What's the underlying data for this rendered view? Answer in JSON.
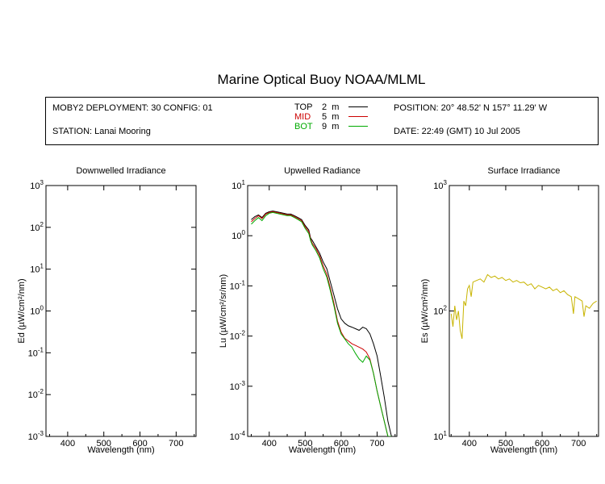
{
  "title": "Marine Optical Buoy NOAA/MLML",
  "info": {
    "deployment": "MOBY2 DEPLOYMENT: 30 CONFIG: 01",
    "station": "STATION: Lanai Mooring",
    "position": "POSITION: 20° 48.52' N   157° 11.29' W",
    "date": "DATE: 22:49 (GMT) 10 Jul 2005"
  },
  "legend": [
    {
      "label": "TOP",
      "depth": "2",
      "unit": "m",
      "color": "#000000"
    },
    {
      "label": "MID",
      "depth": "5",
      "unit": "m",
      "color": "#cc0000"
    },
    {
      "label": "BOT",
      "depth": "9",
      "unit": "m",
      "color": "#00aa00"
    }
  ],
  "chart_data": [
    {
      "type": "line",
      "title": "Downwelled Irradiance",
      "xlabel": "Wavelength (nm)",
      "ylabel": "Ed  (µW/cm²/nm)",
      "xlim": [
        340,
        755
      ],
      "ylim": [
        0.001,
        1000
      ],
      "yscale": "log",
      "xticks": [
        "400",
        "500",
        "600",
        "700"
      ],
      "yticks": [
        {
          "base": "10",
          "exp": "-3"
        },
        {
          "base": "10",
          "exp": "-2"
        },
        {
          "base": "10",
          "exp": "-1"
        },
        {
          "base": "10",
          "exp": "0"
        },
        {
          "base": "10",
          "exp": "1"
        },
        {
          "base": "10",
          "exp": "2"
        },
        {
          "base": "10",
          "exp": "3"
        }
      ],
      "series": []
    },
    {
      "type": "line",
      "title": "Upwelled Radiance",
      "xlabel": "Wavelength (nm)",
      "ylabel": "Lu  (µW/cm²/sr/nm)",
      "xlim": [
        340,
        755
      ],
      "ylim": [
        0.0001,
        10
      ],
      "yscale": "log",
      "xticks": [
        "400",
        "500",
        "600",
        "700"
      ],
      "yticks": [
        {
          "base": "10",
          "exp": "-4"
        },
        {
          "base": "10",
          "exp": "-3"
        },
        {
          "base": "10",
          "exp": "-2"
        },
        {
          "base": "10",
          "exp": "-1"
        },
        {
          "base": "10",
          "exp": "0"
        },
        {
          "base": "10",
          "exp": "1"
        }
      ],
      "series": [
        {
          "name": "TOP",
          "color": "#000000",
          "x": [
            350,
            360,
            370,
            380,
            390,
            400,
            410,
            420,
            430,
            440,
            450,
            460,
            470,
            480,
            490,
            500,
            510,
            515,
            520,
            530,
            540,
            550,
            560,
            570,
            580,
            590,
            600,
            610,
            620,
            630,
            640,
            650,
            660,
            670,
            680,
            690,
            700,
            710,
            720,
            730,
            740
          ],
          "y": [
            2.1,
            2.4,
            2.6,
            2.3,
            2.8,
            3.0,
            3.1,
            3.0,
            2.9,
            2.8,
            2.7,
            2.7,
            2.5,
            2.3,
            2.1,
            1.6,
            1.3,
            0.9,
            0.8,
            0.6,
            0.45,
            0.3,
            0.22,
            0.12,
            0.065,
            0.035,
            0.022,
            0.018,
            0.016,
            0.015,
            0.014,
            0.013,
            0.015,
            0.014,
            0.011,
            0.007,
            0.004,
            0.0016,
            0.0006,
            0.0002,
            0.0001
          ]
        },
        {
          "name": "MID",
          "color": "#cc0000",
          "x": [
            350,
            360,
            370,
            380,
            390,
            400,
            410,
            420,
            430,
            440,
            450,
            460,
            470,
            480,
            490,
            500,
            510,
            515,
            520,
            530,
            540,
            550,
            560,
            570,
            580,
            590,
            600,
            610,
            620,
            630,
            640,
            650,
            660,
            670,
            680,
            690,
            700,
            710,
            720,
            730,
            740
          ],
          "y": [
            1.9,
            2.2,
            2.5,
            2.2,
            2.7,
            2.9,
            3.0,
            2.9,
            2.8,
            2.7,
            2.6,
            2.6,
            2.4,
            2.2,
            2.0,
            1.5,
            1.2,
            0.85,
            0.7,
            0.55,
            0.4,
            0.25,
            0.17,
            0.09,
            0.045,
            0.02,
            0.012,
            0.009,
            0.008,
            0.007,
            0.0065,
            0.006,
            0.0055,
            0.0048,
            0.0035,
            0.0018,
            0.0008,
            0.0004,
            0.0002,
            0.0001,
            0.0001
          ]
        },
        {
          "name": "BOT",
          "color": "#00aa00",
          "x": [
            350,
            360,
            370,
            380,
            390,
            400,
            410,
            420,
            430,
            440,
            450,
            460,
            470,
            480,
            490,
            500,
            510,
            515,
            520,
            530,
            540,
            550,
            560,
            570,
            580,
            590,
            600,
            620,
            630,
            640,
            650,
            660,
            670,
            680,
            690,
            700,
            710,
            720,
            730,
            740
          ],
          "y": [
            1.7,
            2.0,
            2.3,
            2.0,
            2.5,
            2.8,
            2.9,
            2.8,
            2.7,
            2.6,
            2.5,
            2.5,
            2.3,
            2.1,
            1.9,
            1.4,
            1.1,
            0.8,
            0.65,
            0.5,
            0.36,
            0.22,
            0.15,
            0.08,
            0.04,
            0.018,
            0.011,
            0.007,
            0.006,
            0.0045,
            0.0035,
            0.003,
            0.004,
            0.0033,
            0.0018,
            0.0008,
            0.0004,
            0.0002,
            0.0001,
            0.0001
          ]
        }
      ]
    },
    {
      "type": "line",
      "title": "Surface Irradiance",
      "xlabel": "Wavelength (nm)",
      "ylabel": "Es  (µW/cm²/nm)",
      "xlim": [
        345,
        755
      ],
      "ylim": [
        10,
        1000
      ],
      "yscale": "log",
      "xticks": [
        "400",
        "500",
        "600",
        "700"
      ],
      "yticks": [
        {
          "base": "10",
          "exp": "1"
        },
        {
          "base": "10",
          "exp": "2"
        },
        {
          "base": "10",
          "exp": "3"
        }
      ],
      "series": [
        {
          "name": "Es",
          "color": "#c8b400",
          "x": [
            350,
            355,
            360,
            365,
            370,
            375,
            380,
            385,
            390,
            395,
            400,
            405,
            410,
            420,
            430,
            440,
            450,
            460,
            470,
            480,
            490,
            500,
            510,
            520,
            530,
            540,
            550,
            560,
            570,
            580,
            590,
            600,
            610,
            620,
            630,
            640,
            650,
            660,
            670,
            680,
            686,
            690,
            700,
            710,
            715,
            720,
            730,
            740,
            750
          ],
          "y": [
            95,
            75,
            110,
            85,
            100,
            70,
            60,
            120,
            110,
            150,
            160,
            130,
            170,
            175,
            180,
            170,
            195,
            185,
            190,
            180,
            185,
            175,
            180,
            170,
            175,
            168,
            170,
            160,
            165,
            150,
            160,
            155,
            150,
            155,
            145,
            150,
            140,
            145,
            135,
            130,
            95,
            130,
            125,
            120,
            90,
            110,
            105,
            115,
            120
          ]
        }
      ]
    }
  ]
}
